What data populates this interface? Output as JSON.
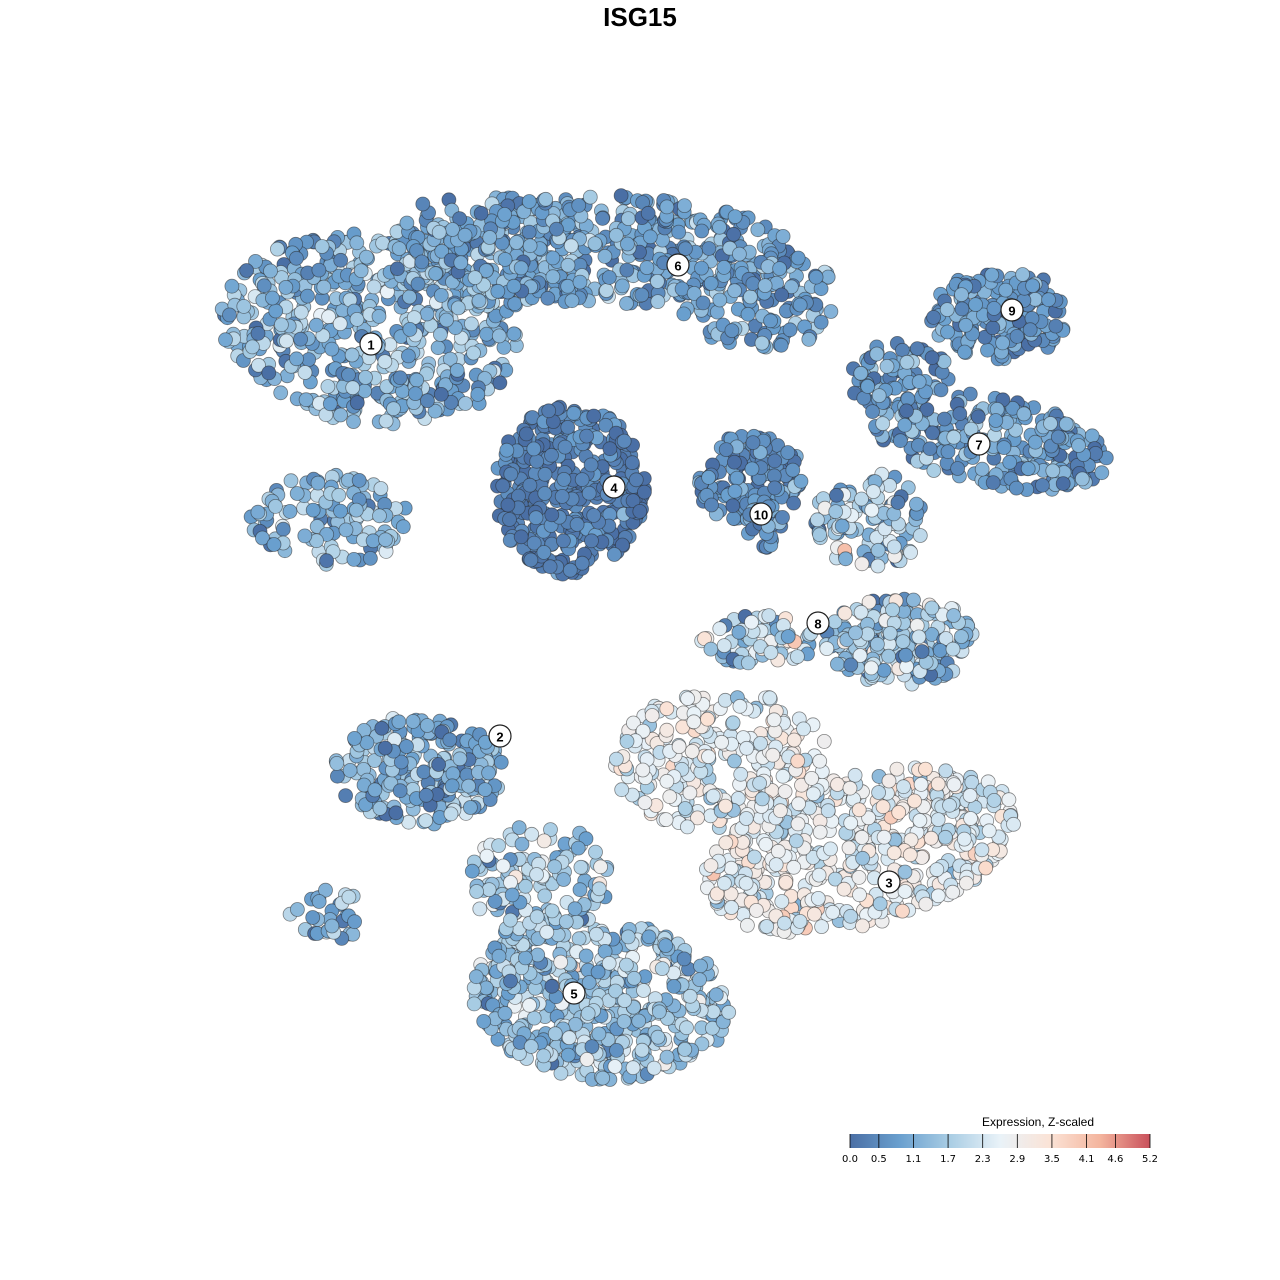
{
  "title": "ISG15",
  "chart_data": {
    "type": "scatter",
    "title": "ISG15",
    "xlabel": "",
    "ylabel": "",
    "grid": false,
    "axes_visible": false,
    "color_scale": {
      "title": "Expression, Z-scaled",
      "min": 0.0,
      "max": 5.2,
      "ticks": [
        "0.0",
        "0.5",
        "1.1",
        "1.7",
        "2.3",
        "2.9",
        "3.5",
        "4.1",
        "4.6",
        "5.2"
      ],
      "colors": [
        "#4a6fa5",
        "#6aa0cf",
        "#a9cde4",
        "#e9f2f8",
        "#fbe3d6",
        "#f4b59e",
        "#c9505b"
      ],
      "legend_placement": "bottom-right"
    },
    "clusters": [
      {
        "label": "1",
        "mean_expression": 1.2,
        "spread": 0.6
      },
      {
        "label": "2",
        "mean_expression": 1.1,
        "spread": 0.6
      },
      {
        "label": "3",
        "mean_expression": 2.6,
        "spread": 0.5
      },
      {
        "label": "4",
        "mean_expression": 0.3,
        "spread": 0.3
      },
      {
        "label": "5",
        "mean_expression": 1.6,
        "spread": 0.6
      },
      {
        "label": "6",
        "mean_expression": 0.9,
        "spread": 0.5
      },
      {
        "label": "7",
        "mean_expression": 0.8,
        "spread": 0.5
      },
      {
        "label": "8",
        "mean_expression": 1.7,
        "spread": 0.8
      },
      {
        "label": "9",
        "mean_expression": 0.7,
        "spread": 0.4
      },
      {
        "label": "10",
        "mean_expression": 0.6,
        "spread": 0.4
      }
    ]
  }
}
